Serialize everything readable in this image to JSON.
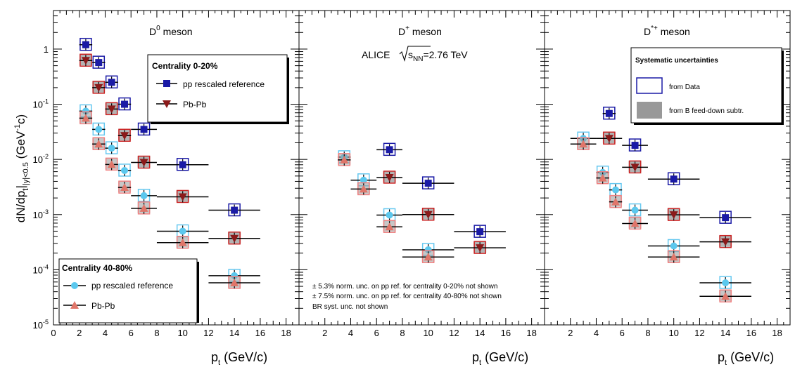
{
  "figure": {
    "ylabel_main": "dN/dp",
    "ylabel_sub": "t",
    "ylabel_range": "|y|<0.5",
    "ylabel_unit": "(GeV",
    "ylabel_unit_exp": "-1",
    "ylabel_unit_end": "c)",
    "xlabel_main": "p",
    "xlabel_sub": "t",
    "xlabel_unit": " (GeV/c)",
    "experiment": "ALICE",
    "energy_label": "s",
    "energy_sub": "NN",
    "energy_value": "=2.76 TeV",
    "notes": [
      "± 5.3% norm. unc. on pp ref. for centrality 0-20% not shown",
      "± 7.5% norm. unc. on pp ref. for centrality 40-80% not shown",
      "BR syst. unc. not shown"
    ],
    "legend_central": {
      "title": "Centrality 0-20%",
      "entries": [
        "pp rescaled reference",
        "Pb-Pb"
      ]
    },
    "legend_peripheral": {
      "title": "Centrality 40-80%",
      "entries": [
        "pp rescaled reference",
        "Pb-Pb"
      ]
    },
    "legend_syst": {
      "title": "Systematic uncertainties",
      "entries": [
        "from Data",
        "from B feed-down subtr."
      ]
    },
    "colors": {
      "pp_central": "#1a1aa6",
      "pbpb_central": "#8b1a1a",
      "pp_peripheral": "#5bc8ee",
      "pbpb_peripheral": "#e0766a",
      "data_box_central": "#1a1aa6",
      "data_box_pbpb": "#cc2222",
      "data_box_pp_periph": "#66c8f0",
      "data_box_pbpb_periph": "#f08080",
      "feeddown_fill": "#999999"
    }
  },
  "chart_data": [
    {
      "type": "scatter",
      "panel_label": "D",
      "panel_label_sup": "0",
      "panel_label_rest": " meson",
      "xlim": [
        0,
        19
      ],
      "ylim": [
        1e-05,
        5
      ],
      "yscale": "log",
      "xticks": [
        "0",
        "2",
        "4",
        "6",
        "8",
        "10",
        "12",
        "14",
        "16",
        "18"
      ],
      "yticks": [
        "1",
        "10^-1",
        "10^-2",
        "10^-3",
        "10^-4",
        "10^-5"
      ],
      "series": [
        {
          "name": "Centrality 0-20% pp rescaled reference",
          "key": "pp_central",
          "marker": "square",
          "points": [
            {
              "x": 2.5,
              "y": 1.2,
              "xerr": 0.5
            },
            {
              "x": 3.5,
              "y": 0.57,
              "xerr": 0.5
            },
            {
              "x": 4.5,
              "y": 0.25,
              "xerr": 0.5
            },
            {
              "x": 5.5,
              "y": 0.1,
              "xerr": 0.5
            },
            {
              "x": 7,
              "y": 0.035,
              "xerr": 1
            },
            {
              "x": 10,
              "y": 0.008,
              "xerr": 2
            },
            {
              "x": 14,
              "y": 0.0012,
              "xerr": 2
            }
          ]
        },
        {
          "name": "Centrality 0-20% Pb-Pb",
          "key": "pbpb_central",
          "marker": "triangle-down",
          "points": [
            {
              "x": 2.5,
              "y": 0.62,
              "xerr": 0.5
            },
            {
              "x": 3.5,
              "y": 0.2,
              "xerr": 0.5
            },
            {
              "x": 4.5,
              "y": 0.082,
              "xerr": 0.5
            },
            {
              "x": 5.5,
              "y": 0.027,
              "xerr": 0.5
            },
            {
              "x": 7,
              "y": 0.0088,
              "xerr": 1
            },
            {
              "x": 10,
              "y": 0.0021,
              "xerr": 2
            },
            {
              "x": 14,
              "y": 0.00037,
              "xerr": 2
            }
          ]
        },
        {
          "name": "Centrality 40-80% pp rescaled reference",
          "key": "pp_peripheral",
          "marker": "circle",
          "points": [
            {
              "x": 2.5,
              "y": 0.075,
              "xerr": 0.5
            },
            {
              "x": 3.5,
              "y": 0.035,
              "xerr": 0.5
            },
            {
              "x": 4.5,
              "y": 0.016,
              "xerr": 0.5
            },
            {
              "x": 5.5,
              "y": 0.0063,
              "xerr": 0.5
            },
            {
              "x": 7,
              "y": 0.0022,
              "xerr": 1
            },
            {
              "x": 10,
              "y": 0.0005,
              "xerr": 2
            },
            {
              "x": 14,
              "y": 7.8e-05,
              "xerr": 2
            }
          ]
        },
        {
          "name": "Centrality 40-80% Pb-Pb",
          "key": "pbpb_peripheral",
          "marker": "triangle-up",
          "points": [
            {
              "x": 2.5,
              "y": 0.056,
              "xerr": 0.5
            },
            {
              "x": 3.5,
              "y": 0.019,
              "xerr": 0.5
            },
            {
              "x": 4.5,
              "y": 0.0081,
              "xerr": 0.5
            },
            {
              "x": 5.5,
              "y": 0.0031,
              "xerr": 0.5
            },
            {
              "x": 7,
              "y": 0.0013,
              "xerr": 1
            },
            {
              "x": 10,
              "y": 0.00031,
              "xerr": 2
            },
            {
              "x": 14,
              "y": 5.8e-05,
              "xerr": 2
            }
          ]
        }
      ]
    },
    {
      "type": "scatter",
      "panel_label": "D",
      "panel_label_sup": "+",
      "panel_label_rest": " meson",
      "xlim": [
        0,
        19
      ],
      "ylim": [
        1e-05,
        5
      ],
      "yscale": "log",
      "xticks": [
        "2",
        "4",
        "6",
        "8",
        "10",
        "12",
        "14",
        "16",
        "18"
      ],
      "series": [
        {
          "name": "Centrality 0-20% pp rescaled reference",
          "key": "pp_central",
          "marker": "square",
          "points": [
            {
              "x": 7,
              "y": 0.015,
              "xerr": 1
            },
            {
              "x": 10,
              "y": 0.0037,
              "xerr": 2
            },
            {
              "x": 14,
              "y": 0.00049,
              "xerr": 2
            }
          ]
        },
        {
          "name": "Centrality 0-20% Pb-Pb",
          "key": "pbpb_central",
          "marker": "triangle-down",
          "points": [
            {
              "x": 7,
              "y": 0.0047,
              "xerr": 1
            },
            {
              "x": 10,
              "y": 0.001,
              "xerr": 2
            },
            {
              "x": 14,
              "y": 0.00025,
              "xerr": 2
            }
          ]
        },
        {
          "name": "Centrality 40-80% pp rescaled reference",
          "key": "pp_peripheral",
          "marker": "circle",
          "points": [
            {
              "x": 3.5,
              "y": 0.011,
              "xerr": 0.5
            },
            {
              "x": 5,
              "y": 0.0042,
              "xerr": 1
            },
            {
              "x": 7,
              "y": 0.00098,
              "xerr": 1
            },
            {
              "x": 10,
              "y": 0.00023,
              "xerr": 2
            }
          ]
        },
        {
          "name": "Centrality 40-80% Pb-Pb",
          "key": "pbpb_peripheral",
          "marker": "triangle-up",
          "points": [
            {
              "x": 3.5,
              "y": 0.0098,
              "xerr": 0.5
            },
            {
              "x": 5,
              "y": 0.0029,
              "xerr": 1
            },
            {
              "x": 7,
              "y": 0.0006,
              "xerr": 1
            },
            {
              "x": 10,
              "y": 0.00017,
              "xerr": 2
            }
          ]
        }
      ]
    },
    {
      "type": "scatter",
      "panel_label": "D",
      "panel_label_sup": "*+",
      "panel_label_rest": " meson",
      "xlim": [
        0,
        19
      ],
      "ylim": [
        1e-05,
        5
      ],
      "yscale": "log",
      "xticks": [
        "2",
        "4",
        "6",
        "8",
        "10",
        "12",
        "14",
        "16",
        "18"
      ],
      "series": [
        {
          "name": "Centrality 0-20% pp rescaled reference",
          "key": "pp_central",
          "marker": "square",
          "points": [
            {
              "x": 5,
              "y": 0.068,
              "xerr": 0.5
            },
            {
              "x": 7,
              "y": 0.018,
              "xerr": 1
            },
            {
              "x": 10,
              "y": 0.0044,
              "xerr": 2
            },
            {
              "x": 14,
              "y": 0.00088,
              "xerr": 2
            }
          ]
        },
        {
          "name": "Centrality 0-20% Pb-Pb",
          "key": "pbpb_central",
          "marker": "triangle-down",
          "points": [
            {
              "x": 5,
              "y": 0.024,
              "xerr": 1
            },
            {
              "x": 7,
              "y": 0.0072,
              "xerr": 1
            },
            {
              "x": 10,
              "y": 0.00099,
              "xerr": 2
            },
            {
              "x": 14,
              "y": 0.00032,
              "xerr": 2
            }
          ]
        },
        {
          "name": "Centrality 40-80% pp rescaled reference",
          "key": "pp_peripheral",
          "marker": "circle",
          "points": [
            {
              "x": 3,
              "y": 0.024,
              "xerr": 1
            },
            {
              "x": 4.5,
              "y": 0.0058,
              "xerr": 0.5
            },
            {
              "x": 5.5,
              "y": 0.0028,
              "xerr": 0.5
            },
            {
              "x": 7,
              "y": 0.0012,
              "xerr": 1
            },
            {
              "x": 10,
              "y": 0.00027,
              "xerr": 2
            },
            {
              "x": 14,
              "y": 5.8e-05,
              "xerr": 2
            }
          ]
        },
        {
          "name": "Centrality 40-80% Pb-Pb",
          "key": "pbpb_peripheral",
          "marker": "triangle-up",
          "points": [
            {
              "x": 3,
              "y": 0.019,
              "xerr": 1
            },
            {
              "x": 4.5,
              "y": 0.0046,
              "xerr": 0.5
            },
            {
              "x": 5.5,
              "y": 0.0017,
              "xerr": 0.5
            },
            {
              "x": 7,
              "y": 0.00069,
              "xerr": 1
            },
            {
              "x": 10,
              "y": 0.00017,
              "xerr": 2
            },
            {
              "x": 14,
              "y": 3.3e-05,
              "xerr": 2
            }
          ]
        }
      ]
    }
  ]
}
